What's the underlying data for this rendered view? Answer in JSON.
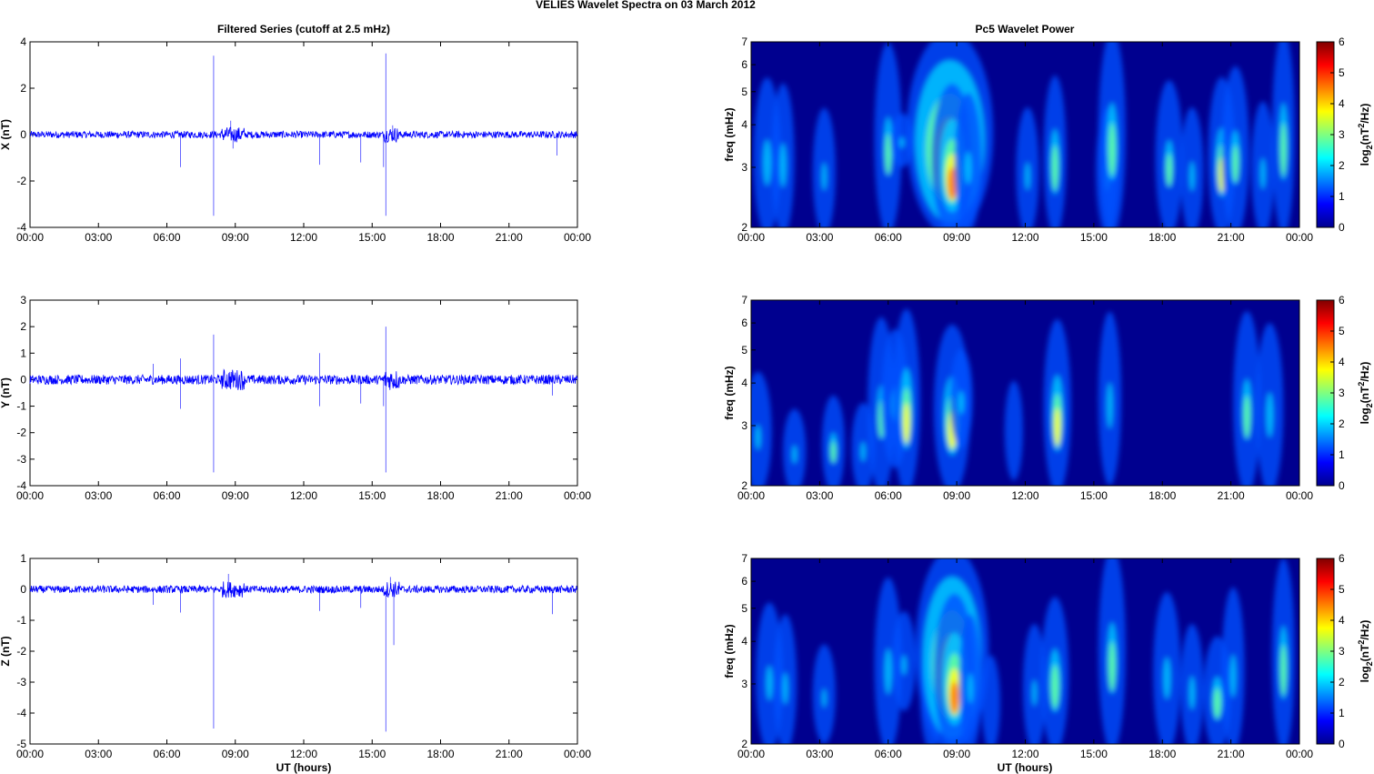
{
  "figure": {
    "suptitle": "VELIES Wavelet Spectra on 03 March     2012",
    "left_title": "Filtered Series (cutoff at 2.5 mHz)",
    "right_title": "Pc5 Wavelet Power",
    "xlabel": "UT (hours)"
  },
  "colors": {
    "trace": "#0000ff",
    "spectrum_background": "#00008f"
  },
  "chart_data": [
    {
      "type": "line",
      "panel": "X",
      "ylabel": "X (nT)",
      "xlim": [
        0,
        24
      ],
      "ylim": [
        -4,
        4
      ],
      "xticks": [
        "00:00",
        "03:00",
        "06:00",
        "09:00",
        "12:00",
        "15:00",
        "18:00",
        "21:00",
        "00:00"
      ],
      "yticks": [
        "-4",
        "-2",
        "0",
        "2",
        "4"
      ],
      "yticklabels": [
        "-4",
        "-2",
        "0",
        "2",
        "4"
      ],
      "series": [
        {
          "noise_amplitude": 0.15,
          "spikes": [
            [
              6.6,
              -1.4
            ],
            [
              8.05,
              3.4
            ],
            [
              8.05,
              -3.5
            ],
            [
              8.8,
              0.6
            ],
            [
              8.9,
              -0.6
            ],
            [
              12.7,
              -1.3
            ],
            [
              14.5,
              -1.2
            ],
            [
              15.5,
              -1.4
            ],
            [
              15.6,
              3.5
            ],
            [
              15.6,
              -3.5
            ],
            [
              15.9,
              0.4
            ],
            [
              23.1,
              -0.9
            ]
          ]
        }
      ]
    },
    {
      "type": "line",
      "panel": "Y",
      "ylabel": "Y (nT)",
      "xlim": [
        0,
        24
      ],
      "ylim": [
        -4,
        3
      ],
      "xticks": [
        "00:00",
        "03:00",
        "06:00",
        "09:00",
        "12:00",
        "15:00",
        "18:00",
        "21:00",
        "00:00"
      ],
      "yticks": [
        "-4",
        "-3",
        "-2",
        "-1",
        "0",
        "1",
        "2",
        "3"
      ],
      "yticklabels": [
        "-4",
        "-3",
        "-2",
        "-1",
        "0",
        "1",
        "2",
        "3"
      ],
      "series": [
        {
          "noise_amplitude": 0.18,
          "spikes": [
            [
              5.4,
              0.6
            ],
            [
              6.6,
              -1.1
            ],
            [
              6.6,
              0.8
            ],
            [
              8.05,
              1.7
            ],
            [
              8.05,
              -3.5
            ],
            [
              12.7,
              1.0
            ],
            [
              12.7,
              -1.0
            ],
            [
              14.5,
              -0.9
            ],
            [
              15.5,
              -1.0
            ],
            [
              15.6,
              2.0
            ],
            [
              15.6,
              -3.5
            ],
            [
              22.9,
              -0.6
            ]
          ]
        }
      ]
    },
    {
      "type": "line",
      "panel": "Z",
      "ylabel": "Z (nT)",
      "xlim": [
        0,
        24
      ],
      "ylim": [
        -5,
        1
      ],
      "xticks": [
        "00:00",
        "03:00",
        "06:00",
        "09:00",
        "12:00",
        "15:00",
        "18:00",
        "21:00",
        "00:00"
      ],
      "yticks": [
        "-5",
        "-4",
        "-3",
        "-2",
        "-1",
        "0",
        "1"
      ],
      "yticklabels": [
        "-5",
        "-4",
        "-3",
        "-2",
        "-1",
        "0",
        "1"
      ],
      "series": [
        {
          "noise_amplitude": 0.12,
          "spikes": [
            [
              5.4,
              -0.5
            ],
            [
              6.6,
              -0.75
            ],
            [
              8.05,
              -4.5
            ],
            [
              8.7,
              0.5
            ],
            [
              12.7,
              -0.7
            ],
            [
              14.5,
              -0.6
            ],
            [
              15.6,
              -4.6
            ],
            [
              15.95,
              -1.8
            ],
            [
              15.8,
              0.4
            ],
            [
              22.9,
              -0.8
            ]
          ]
        }
      ]
    },
    {
      "type": "heatmap",
      "panel": "X",
      "ylabel": "freq (mHz)",
      "xlim": [
        0,
        24
      ],
      "ylim": [
        2,
        7
      ],
      "yscale": "log",
      "xticks": [
        "00:00",
        "03:00",
        "06:00",
        "09:00",
        "12:00",
        "15:00",
        "18:00",
        "21:00",
        "00:00"
      ],
      "yticks": [
        "2",
        "3",
        "4",
        "5",
        "6",
        "7"
      ],
      "yticklabels": [
        "2",
        "3",
        "4",
        "5",
        "6",
        "7"
      ],
      "colorbar": {
        "label": "log",
        "label_sub": "2",
        "label_rest_a": "(nT",
        "label_sup": "2",
        "label_rest_b": "/Hz)",
        "range": [
          0,
          6
        ],
        "ticks": [
          "0",
          "1",
          "2",
          "3",
          "4",
          "5",
          "6"
        ]
      },
      "blobs": [
        [
          0.7,
          2.5,
          0.6,
          2.0,
          2.2
        ],
        [
          1.4,
          2.3,
          0.5,
          2.0,
          2.3
        ],
        [
          3.2,
          2.8,
          0.5,
          1.5,
          1.6
        ],
        [
          6.0,
          2.9,
          0.6,
          2.1,
          2.4
        ],
        [
          6.6,
          3.6,
          0.5,
          1.4,
          1.2
        ],
        [
          8.7,
          3.1,
          1.9,
          6.0,
          3.6
        ],
        [
          8.8,
          2.2,
          0.9,
          4.2,
          2.4
        ],
        [
          9.5,
          3.1,
          0.6,
          1.6,
          1.6
        ],
        [
          12.1,
          2.5,
          0.5,
          1.5,
          1.8
        ],
        [
          13.3,
          3.1,
          0.5,
          2.8,
          1.8
        ],
        [
          15.6,
          2.5,
          0.5,
          1.6,
          1.8
        ],
        [
          15.8,
          3.8,
          0.6,
          2.6,
          2.4
        ],
        [
          18.3,
          3.0,
          0.6,
          2.1,
          1.8
        ],
        [
          19.3,
          2.5,
          0.5,
          1.6,
          1.8
        ],
        [
          20.6,
          2.3,
          0.6,
          3.0,
          2.4
        ],
        [
          21.2,
          3.3,
          0.6,
          2.2,
          1.8
        ],
        [
          22.4,
          2.6,
          0.5,
          1.6,
          1.8
        ],
        [
          23.3,
          2.8,
          0.5,
          2.6,
          2.8
        ]
      ]
    },
    {
      "type": "heatmap",
      "panel": "Y",
      "ylabel": "freq (mHz)",
      "xlim": [
        0,
        24
      ],
      "ylim": [
        2,
        7
      ],
      "yscale": "log",
      "xticks": [
        "00:00",
        "03:00",
        "06:00",
        "09:00",
        "12:00",
        "15:00",
        "18:00",
        "21:00",
        "00:00"
      ],
      "yticks": [
        "2",
        "3",
        "4",
        "5",
        "6",
        "7"
      ],
      "yticklabels": [
        "2",
        "3",
        "4",
        "5",
        "6",
        "7"
      ],
      "colorbar": {
        "label": "log",
        "label_sub": "2",
        "label_rest_a": "(nT",
        "label_sup": "2",
        "label_rest_b": "/Hz)",
        "range": [
          0,
          6
        ],
        "ticks": [
          "0",
          "1",
          "2",
          "3",
          "4",
          "5",
          "6"
        ]
      },
      "blobs": [
        [
          0.3,
          2.7,
          0.6,
          1.4,
          1.6
        ],
        [
          1.9,
          2.4,
          0.5,
          1.5,
          1.4
        ],
        [
          3.6,
          2.3,
          0.5,
          2.2,
          1.6
        ],
        [
          4.9,
          2.5,
          0.5,
          1.5,
          1.4
        ],
        [
          5.7,
          2.6,
          0.6,
          2.1,
          2.4
        ],
        [
          6.3,
          3.6,
          0.6,
          1.8,
          1.6
        ],
        [
          6.8,
          3.0,
          0.6,
          3.0,
          2.2
        ],
        [
          8.8,
          2.7,
          0.8,
          3.2,
          2.2
        ],
        [
          9.2,
          3.6,
          0.5,
          1.6,
          1.4
        ],
        [
          11.5,
          2.9,
          0.4,
          1.0,
          1.4
        ],
        [
          13.4,
          2.8,
          0.6,
          3.0,
          2.2
        ],
        [
          15.7,
          3.6,
          0.5,
          1.8,
          1.8
        ],
        [
          21.7,
          2.5,
          0.6,
          2.3,
          2.6
        ],
        [
          22.7,
          3.0,
          0.6,
          1.8,
          2.0
        ]
      ]
    },
    {
      "type": "heatmap",
      "panel": "Z",
      "ylabel": "freq (mHz)",
      "xlim": [
        0,
        24
      ],
      "ylim": [
        2,
        7
      ],
      "yscale": "log",
      "xticks": [
        "00:00",
        "03:00",
        "06:00",
        "09:00",
        "12:00",
        "15:00",
        "18:00",
        "21:00",
        "00:00"
      ],
      "yticks": [
        "2",
        "3",
        "4",
        "5",
        "6",
        "7"
      ],
      "yticklabels": [
        "2",
        "3",
        "4",
        "5",
        "6",
        "7"
      ],
      "colorbar": {
        "label": "log",
        "label_sub": "2",
        "label_rest_a": "(nT",
        "label_sup": "2",
        "label_rest_b": "/Hz)",
        "range": [
          0,
          6
        ],
        "ticks": [
          "0",
          "1",
          "2",
          "3",
          "4",
          "5",
          "6"
        ]
      },
      "blobs": [
        [
          0.8,
          2.6,
          0.6,
          1.6,
          2.0
        ],
        [
          1.5,
          2.4,
          0.5,
          1.6,
          2.0
        ],
        [
          3.2,
          2.8,
          0.5,
          1.3,
          1.4
        ],
        [
          6.0,
          2.8,
          0.6,
          1.8,
          2.2
        ],
        [
          6.7,
          3.5,
          0.5,
          1.4,
          1.4
        ],
        [
          7.9,
          2.3,
          0.5,
          1.6,
          1.8
        ],
        [
          8.8,
          3.1,
          1.6,
          5.8,
          3.6
        ],
        [
          8.9,
          2.3,
          0.9,
          4.0,
          2.4
        ],
        [
          9.6,
          3.0,
          0.5,
          1.5,
          1.6
        ],
        [
          10.5,
          2.6,
          0.4,
          1.0,
          1.4
        ],
        [
          12.4,
          2.5,
          0.5,
          1.4,
          1.8
        ],
        [
          13.3,
          3.0,
          0.6,
          2.8,
          1.8
        ],
        [
          15.8,
          3.8,
          0.6,
          2.4,
          2.2
        ],
        [
          18.2,
          3.1,
          0.6,
          1.8,
          1.8
        ],
        [
          19.3,
          2.5,
          0.5,
          1.8,
          1.8
        ],
        [
          20.4,
          2.3,
          0.6,
          2.6,
          1.8
        ],
        [
          21.1,
          3.2,
          0.5,
          1.8,
          1.8
        ],
        [
          23.3,
          2.7,
          0.5,
          2.6,
          2.6
        ]
      ]
    }
  ]
}
